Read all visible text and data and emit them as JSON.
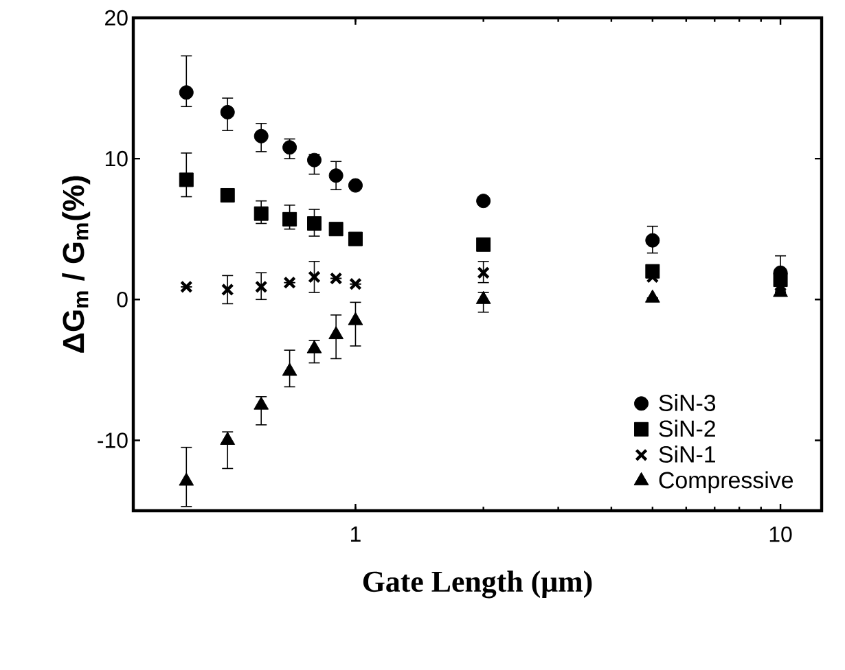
{
  "chart_data": {
    "type": "scatter",
    "xlabel": "Gate Length (μm)",
    "ylabel": "ΔG$_{m}$ / G$_{m}$(%)",
    "log": "x",
    "xlim": [
      0.3,
      12.5
    ],
    "xticks": [
      1,
      10
    ],
    "ylim": [
      -15,
      20
    ],
    "yticks": [
      -10,
      0,
      10,
      20
    ],
    "legend": "bottom right",
    "x": [
      0.4,
      0.5,
      0.6,
      0.7,
      0.8,
      0.9,
      1,
      2,
      5,
      10
    ],
    "series": [
      {
        "name": "SiN-3",
        "color": "#000000",
        "marker": "circle",
        "values": [
          14.7,
          13.3,
          11.6,
          10.8,
          9.9,
          8.8,
          8.1,
          7.0,
          4.2,
          1.9
        ],
        "errors": [
          [
            13.7,
            17.3
          ],
          [
            12.0,
            14.3
          ],
          [
            10.5,
            12.5
          ],
          [
            10.0,
            11.4
          ],
          [
            8.9,
            10.3
          ],
          [
            7.8,
            9.8
          ],
          null,
          null,
          [
            3.3,
            5.2
          ],
          [
            0.6,
            3.1
          ]
        ]
      },
      {
        "name": "SiN-2",
        "color": "#000000",
        "marker": "square",
        "values": [
          8.5,
          7.4,
          6.1,
          5.7,
          5.4,
          5.0,
          4.3,
          3.9,
          2.0,
          1.4
        ],
        "errors": [
          [
            7.3,
            10.4
          ],
          null,
          [
            5.4,
            7.0
          ],
          [
            5.0,
            6.7
          ],
          [
            4.5,
            6.4
          ],
          null,
          null,
          null,
          null,
          null
        ]
      },
      {
        "name": "SiN-1",
        "color": "#000000",
        "marker": "cross",
        "values": [
          0.9,
          0.7,
          0.9,
          1.2,
          1.6,
          1.5,
          1.1,
          1.9,
          1.6,
          1.0
        ],
        "errors": [
          null,
          [
            -0.3,
            1.7
          ],
          [
            0.0,
            1.9
          ],
          null,
          [
            0.5,
            2.7
          ],
          null,
          null,
          [
            1.2,
            2.7
          ],
          null,
          null
        ]
      },
      {
        "name": "Compressive",
        "color": "#000000",
        "marker": "triangle",
        "values": [
          -12.9,
          -10.0,
          -7.5,
          -5.1,
          -3.5,
          -2.5,
          -1.5,
          0.0,
          0.1,
          0.5
        ],
        "errors": [
          [
            -14.7,
            -10.5
          ],
          [
            -12.0,
            -9.4
          ],
          [
            -8.9,
            -6.9
          ],
          [
            -6.2,
            -3.6
          ],
          [
            -4.5,
            -2.9
          ],
          [
            -4.2,
            -1.1
          ],
          [
            -3.3,
            -0.2
          ],
          [
            -0.9,
            0.5
          ],
          null,
          null
        ]
      }
    ]
  }
}
